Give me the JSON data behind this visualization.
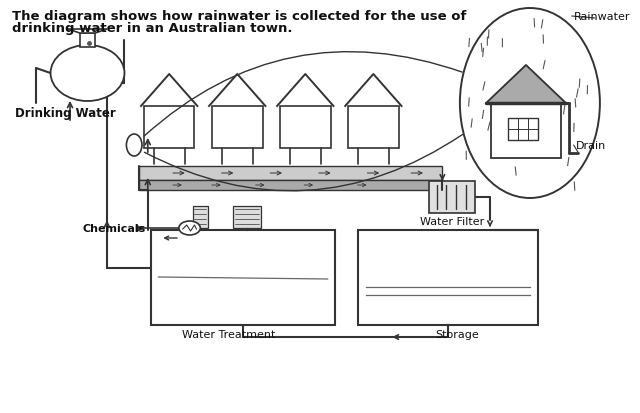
{
  "title_line1": "The diagram shows how rainwater is collected for the use of",
  "title_line2": "drinking water in an Australian town.",
  "bg_color": "#ffffff",
  "line_color": "#333333",
  "labels": {
    "rainwater": "Rainwater",
    "drain": "Drain",
    "drinking_water": "Drinking Water",
    "chemicals": "Chemicals",
    "water_filter": "Water Filter",
    "water_treatment": "Water Treatment",
    "storage": "Storage"
  },
  "title_fontsize": 9.5,
  "label_fontsize": 8,
  "fig_width": 6.4,
  "fig_height": 4.14,
  "dpi": 100
}
